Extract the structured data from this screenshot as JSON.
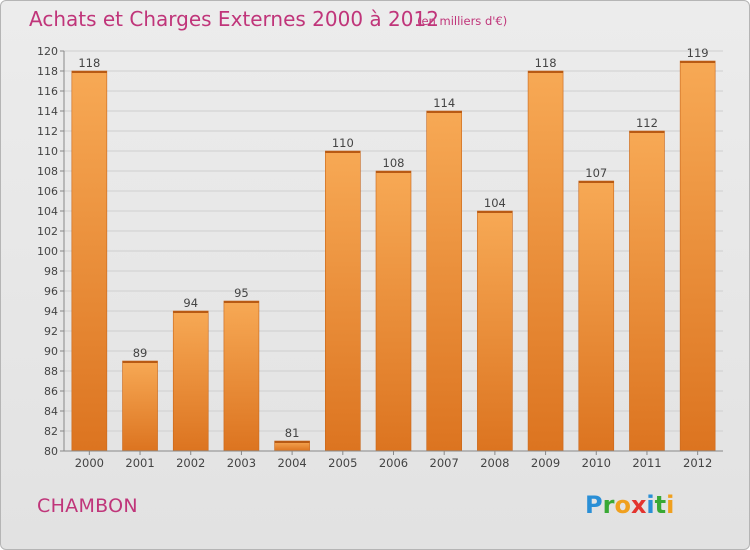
{
  "chart_data": {
    "type": "bar",
    "title": "Achats et Charges Externes 2000 à 2012",
    "subtitle": "(en milliers d'€)",
    "categories": [
      "2000",
      "2001",
      "2002",
      "2003",
      "2004",
      "2005",
      "2006",
      "2007",
      "2008",
      "2009",
      "2010",
      "2011",
      "2012"
    ],
    "values": [
      118,
      89,
      94,
      95,
      81,
      110,
      108,
      114,
      104,
      118,
      107,
      112,
      119
    ],
    "ylim": [
      80,
      120
    ],
    "yticks": [
      80,
      82,
      84,
      86,
      88,
      90,
      92,
      94,
      96,
      98,
      100,
      102,
      104,
      106,
      108,
      110,
      112,
      114,
      116,
      118,
      120
    ],
    "grid": true,
    "bar_color": "#f19c45"
  },
  "footer": {
    "commune": "CHAMBON",
    "logo_letters": [
      "P",
      "r",
      "o",
      "x",
      "i",
      "t",
      "i"
    ],
    "logo_colors": [
      "#2a8fd6",
      "#39a935",
      "#f0a01e",
      "#e3342f",
      "#2a8fd6",
      "#39a935",
      "#f0a01e"
    ]
  }
}
